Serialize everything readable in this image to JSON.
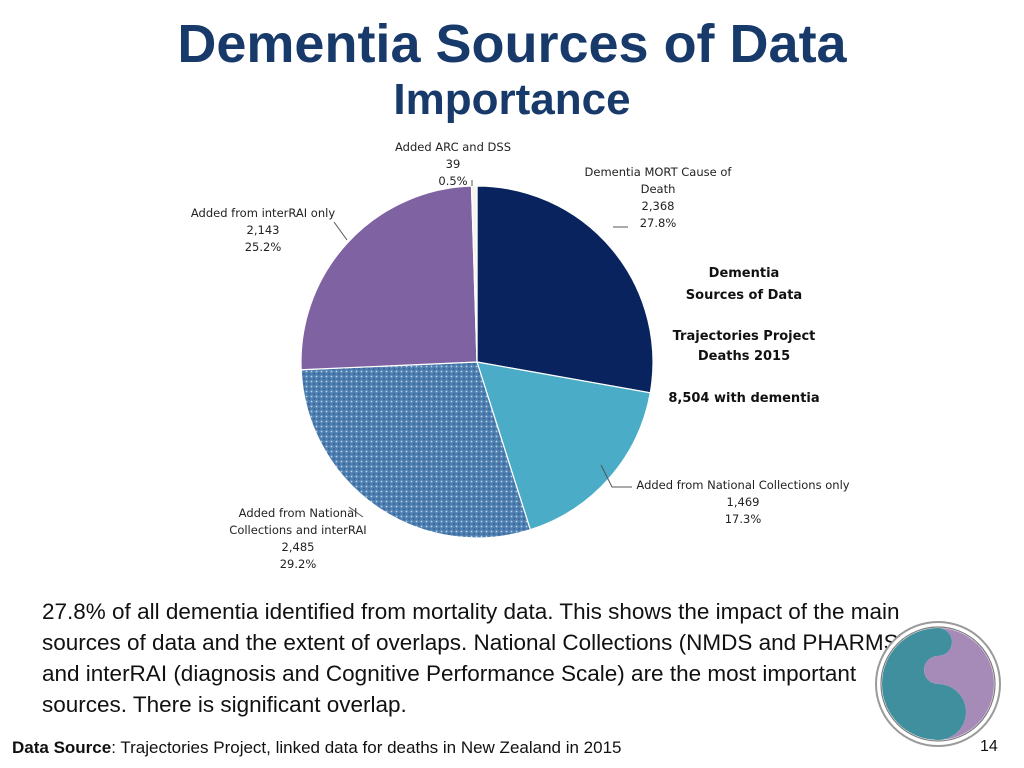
{
  "slide": {
    "title": "Dementia Sources of Data",
    "subtitle": "Importance",
    "summary": "27.8% of all dementia identified from mortality data. This shows the impact of the main sources of data and the extent of overlaps. National Collections (NMDS and PHARMS) and interRAI (diagnosis and Cognitive Performance Scale) are the most important sources. There is significant overlap.",
    "source_label": "Data Source",
    "source_text": ": Trajectories Project, linked data for deaths in New Zealand in 2015",
    "page_number": "14"
  },
  "chart_data": {
    "type": "pie",
    "side_title": [
      "Dementia",
      "Sources of Data"
    ],
    "side_subtitle": [
      "Trajectories Project",
      "Deaths 2015"
    ],
    "side_total": "8,504 with dementia",
    "slices": [
      {
        "label_lines": [
          "Dementia MORT Cause of",
          "Death"
        ],
        "count": "2,368",
        "percent": "27.8%",
        "value": 27.8,
        "color": "#08235d"
      },
      {
        "label_lines": [
          "Added from National Collections only"
        ],
        "count": "1,469",
        "percent": "17.3%",
        "value": 17.3,
        "color": "#4aacc6"
      },
      {
        "label_lines": [
          "Added from National",
          "Collections and interRAI"
        ],
        "count": "2,485",
        "percent": "29.2%",
        "value": 29.2,
        "color": "#4f7fb0",
        "pattern": "dotted"
      },
      {
        "label_lines": [
          "Added from interRAI only"
        ],
        "count": "2,143",
        "percent": "25.2%",
        "value": 25.2,
        "color": "#7f62a1"
      },
      {
        "label_lines": [
          "Added ARC and DSS"
        ],
        "count": "39",
        "percent": "0.5%",
        "value": 0.5,
        "color": "#f7f3ee"
      }
    ]
  },
  "logo": {
    "icon": "koru-logo-icon",
    "colors": [
      "#3f8f9e",
      "#a68ab8"
    ]
  }
}
